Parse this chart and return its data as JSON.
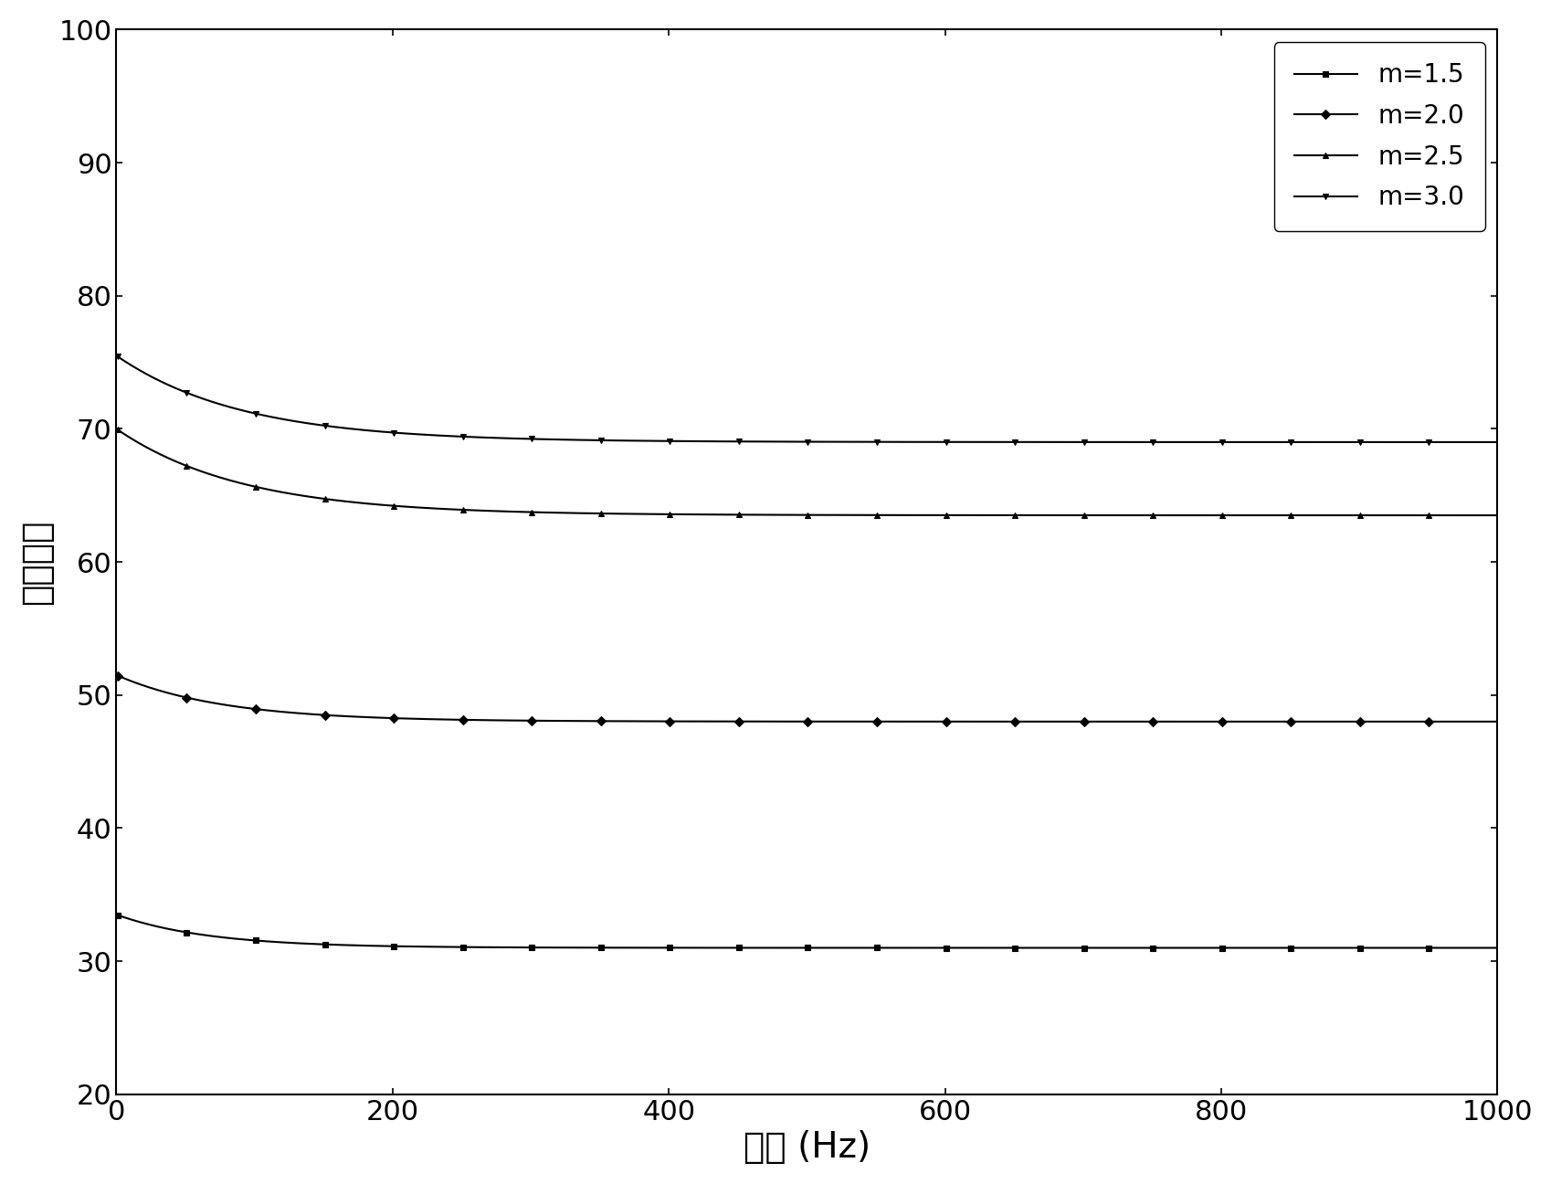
{
  "title": "",
  "xlabel": "频率 (Hz)",
  "ylabel": "介电常数",
  "xlim": [
    0,
    1000
  ],
  "ylim": [
    20,
    100
  ],
  "xticks": [
    0,
    200,
    400,
    600,
    800,
    1000
  ],
  "yticks": [
    20,
    30,
    40,
    50,
    60,
    70,
    80,
    90,
    100
  ],
  "background_color": "#ffffff",
  "series": [
    {
      "label": "m=1.5",
      "color": "#000000",
      "marker": "s",
      "start_val": 33.5,
      "end_val": 31.0,
      "decay": 0.015
    },
    {
      "label": "m=2.0",
      "color": "#000000",
      "marker": "D",
      "start_val": 51.5,
      "end_val": 48.0,
      "decay": 0.013
    },
    {
      "label": "m=2.5",
      "color": "#000000",
      "marker": "^",
      "start_val": 70.0,
      "end_val": 63.5,
      "decay": 0.011
    },
    {
      "label": "m=3.0",
      "color": "#000000",
      "marker": "v",
      "start_val": 75.5,
      "end_val": 69.0,
      "decay": 0.011
    }
  ],
  "legend_loc": "upper right",
  "font_size_label": 28,
  "font_size_tick": 22,
  "font_size_legend": 20,
  "marker_size": 5,
  "linewidth": 1.5,
  "fig_width": 16.99,
  "fig_height": 12.96,
  "dpi": 100
}
